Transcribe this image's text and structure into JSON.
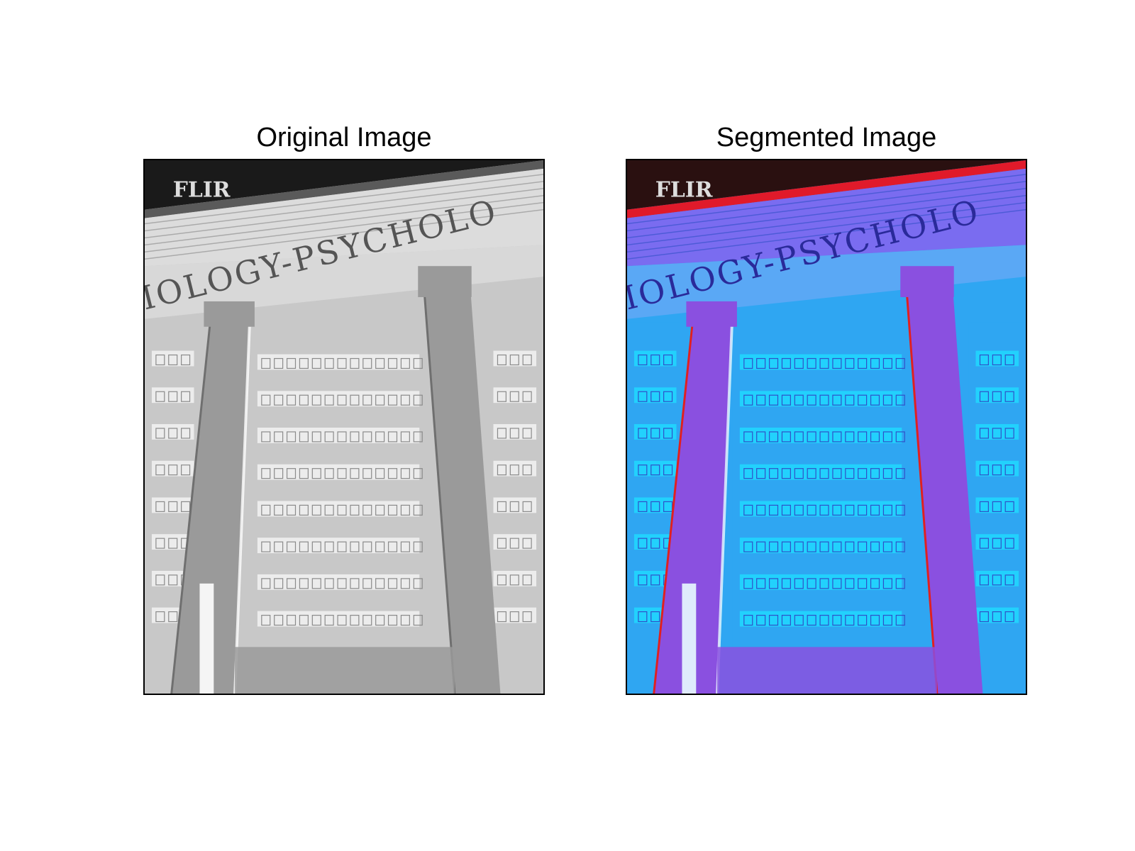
{
  "panels": [
    {
      "title": "Original Image",
      "logo": "FLIR",
      "inscription": "IOLOGY-PSYCHOLO",
      "palette": {
        "sky": "#1a1a1a",
        "cornice_top": "#5a5a5a",
        "cornice": "#dcdcdc",
        "frieze": "#d8d8d8",
        "pillar": "#9a9a9a",
        "pillar_edge": "#6f6f6f",
        "wall": "#c8c8c8",
        "window_band": "#f2f2f2",
        "window_grid": "#8a8a8a",
        "highlight": "#ffffff",
        "inscription": "#555555",
        "logo": "#dddddd"
      }
    },
    {
      "title": "Segmented Image",
      "logo": "FLIR",
      "inscription": "IOLOGY-PSYCHOLO",
      "palette": {
        "sky": "#2a1010",
        "cornice_top": "#e01a2a",
        "cornice": "#7a6cf0",
        "frieze": "#5aa8f5",
        "pillar": "#8a50e0",
        "pillar_edge": "#e02020",
        "wall": "#2fa6f2",
        "window_band": "#20d8ff",
        "window_grid": "#3050c8",
        "highlight": "#e8fbff",
        "inscription": "#2a2a9a",
        "logo": "#dddddd"
      }
    }
  ]
}
